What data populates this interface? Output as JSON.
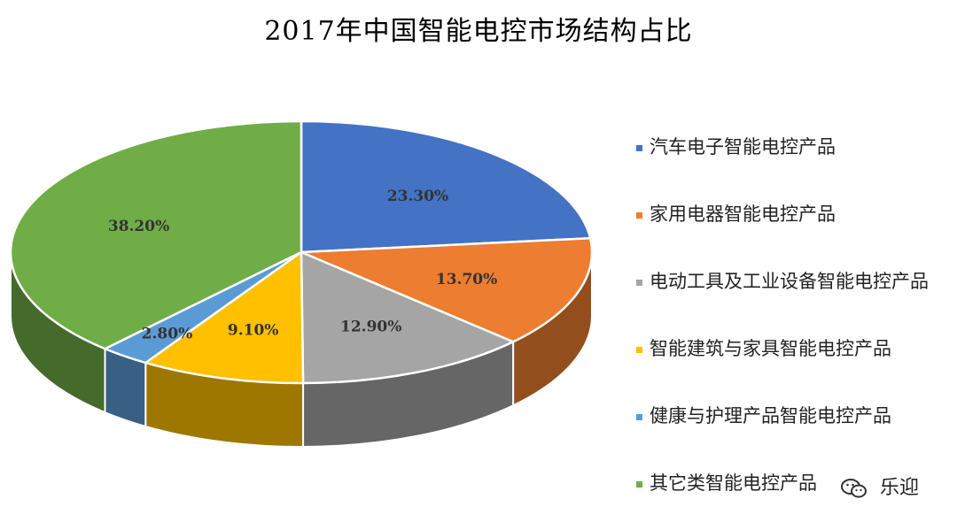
{
  "chart_data": {
    "type": "pie",
    "title": "2017年中国智能电控市场结构占比",
    "legend_position": "right",
    "slices": [
      {
        "label": "汽车电子智能电控产品",
        "value": 23.3,
        "display": "23.30%",
        "color": "#4472C4"
      },
      {
        "label": "家用电器智能电控产品",
        "value": 13.7,
        "display": "13.70%",
        "color": "#ED7D31"
      },
      {
        "label": "电动工具及工业设备智能电控产品",
        "value": 12.9,
        "display": "12.90%",
        "color": "#A5A5A5"
      },
      {
        "label": "智能建筑与家具智能电控产品",
        "value": 9.1,
        "display": "9.10%",
        "color": "#FFC000"
      },
      {
        "label": "健康与护理产品智能电控产品",
        "value": 2.8,
        "display": "2.80%",
        "color": "#5B9BD5"
      },
      {
        "label": "其它类智能电控产品",
        "value": 38.2,
        "display": "38.20%",
        "color": "#70AD47"
      }
    ]
  },
  "watermark": {
    "text": "乐迎",
    "icon": "wechat-icon"
  }
}
